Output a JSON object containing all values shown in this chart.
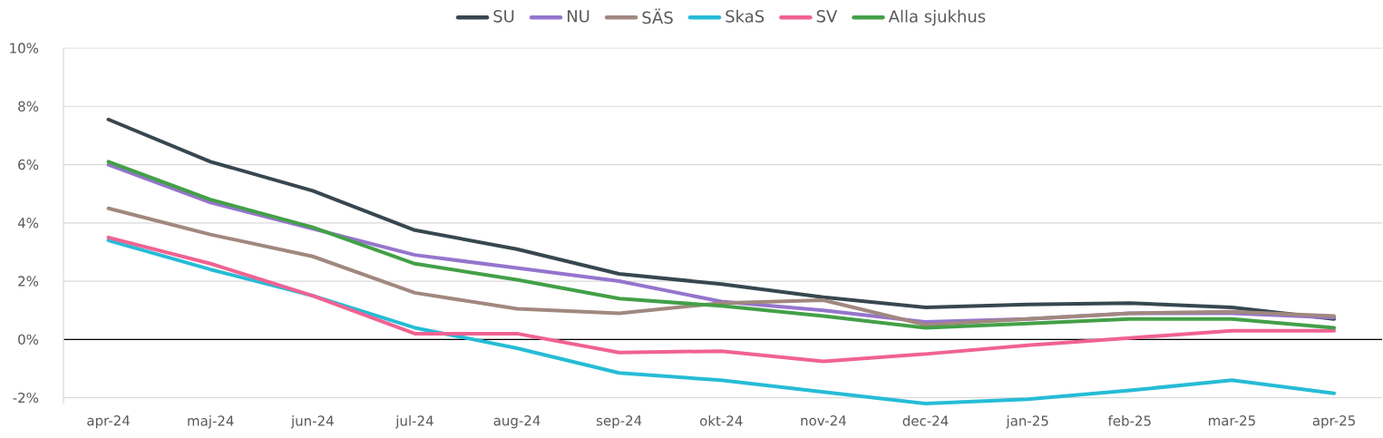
{
  "chart_data": {
    "type": "line",
    "categories": [
      "apr-24",
      "maj-24",
      "jun-24",
      "jul-24",
      "aug-24",
      "sep-24",
      "okt-24",
      "nov-24",
      "dec-24",
      "jan-25",
      "feb-25",
      "mar-25",
      "apr-25"
    ],
    "series": [
      {
        "name": "SU",
        "color": "#37474f",
        "values": [
          7.55,
          6.1,
          5.1,
          3.75,
          3.1,
          2.25,
          1.9,
          1.45,
          1.1,
          1.2,
          1.25,
          1.1,
          0.7
        ]
      },
      {
        "name": "NU",
        "color": "#9575cd",
        "values": [
          6.0,
          4.7,
          3.8,
          2.9,
          2.45,
          2.0,
          1.3,
          1.0,
          0.6,
          0.7,
          0.9,
          0.9,
          0.75
        ]
      },
      {
        "name": "SÄS",
        "color": "#a1887f",
        "values": [
          4.5,
          3.6,
          2.85,
          1.6,
          1.05,
          0.9,
          1.25,
          1.35,
          0.5,
          0.7,
          0.9,
          0.95,
          0.8
        ]
      },
      {
        "name": "SkaS",
        "color": "#26bcd6",
        "values": [
          3.4,
          2.4,
          1.5,
          0.4,
          -0.3,
          -1.15,
          -1.4,
          -1.8,
          -2.2,
          -2.05,
          -1.75,
          -1.4,
          -1.85
        ]
      },
      {
        "name": "SV",
        "color": "#f06292",
        "values": [
          3.5,
          2.6,
          1.5,
          0.2,
          0.2,
          -0.45,
          -0.4,
          -0.75,
          -0.5,
          -0.2,
          0.05,
          0.3,
          0.3
        ]
      },
      {
        "name": "Alla sjukhus",
        "color": "#43a047",
        "values": [
          6.1,
          4.8,
          3.85,
          2.6,
          2.05,
          1.4,
          1.15,
          0.8,
          0.4,
          0.55,
          0.7,
          0.7,
          0.4
        ]
      }
    ],
    "ylim": [
      -2.2,
      10
    ],
    "yticks": [
      {
        "value": -2,
        "label": "-2%"
      },
      {
        "value": 0,
        "label": "0%"
      },
      {
        "value": 2,
        "label": "2%"
      },
      {
        "value": 4,
        "label": "4%"
      },
      {
        "value": 6,
        "label": "6%"
      },
      {
        "value": 8,
        "label": "8%"
      },
      {
        "value": 10,
        "label": "10%"
      }
    ],
    "grid": "y",
    "legend": "top",
    "marker": "none",
    "line_style": "solid"
  }
}
